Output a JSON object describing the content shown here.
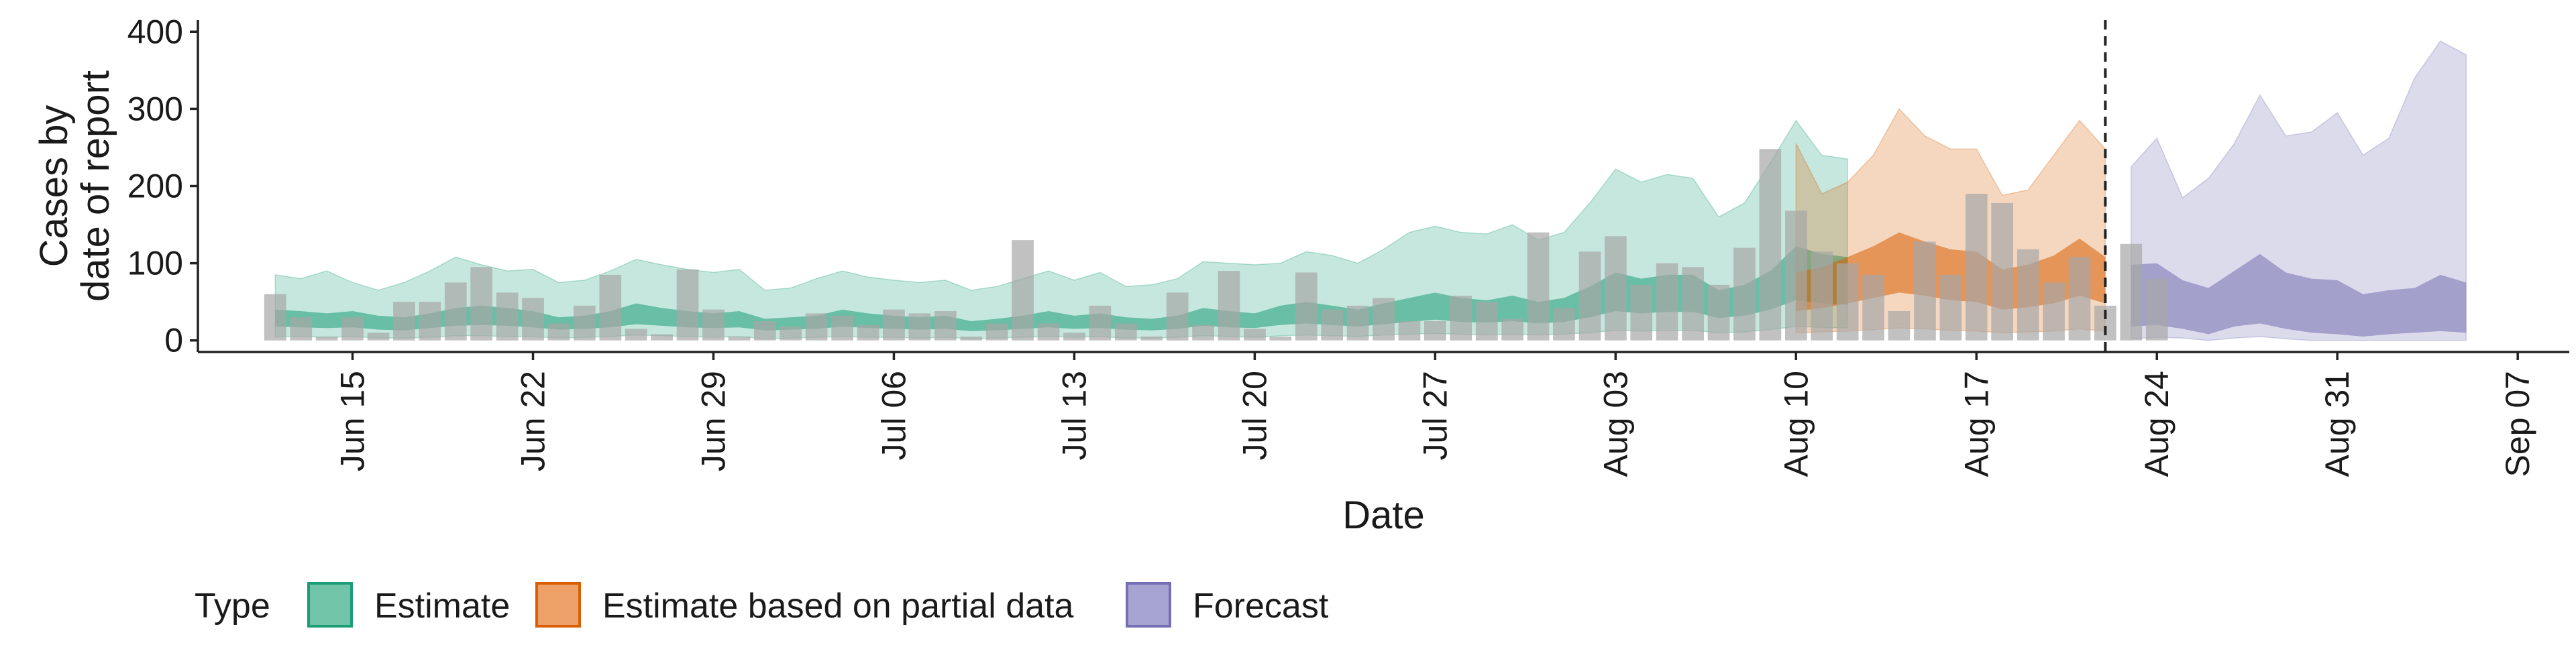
{
  "chart_data": {
    "type": "area",
    "xlabel": "Date",
    "ylabel_lines": [
      "Cases by",
      "date of report"
    ],
    "ylim": [
      -15,
      415
    ],
    "yticks": [
      0,
      100,
      200,
      300,
      400
    ],
    "xlim": [
      "2020-06-09",
      "2020-09-09"
    ],
    "xticks": [
      {
        "date": "2020-06-15",
        "label": "Jun 15"
      },
      {
        "date": "2020-06-22",
        "label": "Jun 22"
      },
      {
        "date": "2020-06-29",
        "label": "Jun 29"
      },
      {
        "date": "2020-07-06",
        "label": "Jul 06"
      },
      {
        "date": "2020-07-13",
        "label": "Jul 13"
      },
      {
        "date": "2020-07-20",
        "label": "Jul 20"
      },
      {
        "date": "2020-07-27",
        "label": "Jul 27"
      },
      {
        "date": "2020-08-03",
        "label": "Aug 03"
      },
      {
        "date": "2020-08-10",
        "label": "Aug 10"
      },
      {
        "date": "2020-08-17",
        "label": "Aug 17"
      },
      {
        "date": "2020-08-24",
        "label": "Aug 24"
      },
      {
        "date": "2020-08-31",
        "label": "Aug 31"
      },
      {
        "date": "2020-09-07",
        "label": "Sep 07"
      }
    ],
    "vline_date": "2020-08-22",
    "grid": false,
    "legend": {
      "title": "Type",
      "position": "bottom",
      "entries": [
        {
          "label": "Estimate",
          "fill": "#72c4a8",
          "stroke": "#1b9e77"
        },
        {
          "label": "Estimate based on partial data",
          "fill": "#eda067",
          "stroke": "#d95f02"
        },
        {
          "label": "Forecast",
          "fill": "#a8a4d2",
          "stroke": "#7570b3"
        }
      ]
    },
    "colors": {
      "estimate": "#1b9e77",
      "partial": "#d95f02",
      "forecast": "#7570b3",
      "bars": "#a6a6a6"
    },
    "bars": {
      "start_date": "2020-06-12",
      "values": [
        60,
        30,
        5,
        30,
        10,
        50,
        50,
        75,
        95,
        62,
        55,
        22,
        45,
        85,
        15,
        8,
        92,
        40,
        5,
        25,
        18,
        35,
        32,
        20,
        40,
        35,
        38,
        5,
        22,
        130,
        22,
        10,
        45,
        22,
        5,
        62,
        20,
        90,
        15,
        5,
        88,
        40,
        45,
        55,
        25,
        25,
        58,
        50,
        28,
        140,
        42,
        115,
        135,
        72,
        100,
        95,
        72,
        120,
        248,
        168,
        115,
        100,
        85,
        38,
        128,
        85,
        190,
        178,
        118,
        75,
        108,
        45,
        125,
        80
      ]
    },
    "series": [
      {
        "type": "Estimate",
        "start_date": "2020-06-12",
        "outer_upper": [
          85,
          80,
          90,
          75,
          65,
          75,
          90,
          108,
          98,
          90,
          92,
          75,
          78,
          90,
          105,
          98,
          92,
          88,
          92,
          65,
          68,
          80,
          90,
          82,
          78,
          75,
          78,
          65,
          70,
          80,
          90,
          78,
          88,
          70,
          72,
          80,
          102,
          100,
          98,
          100,
          115,
          110,
          100,
          118,
          140,
          148,
          140,
          138,
          150,
          130,
          140,
          178,
          222,
          205,
          215,
          210,
          160,
          178,
          230,
          285,
          240,
          235
        ],
        "inner_upper": [
          40,
          38,
          35,
          38,
          32,
          30,
          35,
          42,
          45,
          42,
          38,
          30,
          32,
          38,
          48,
          42,
          38,
          35,
          38,
          28,
          30,
          32,
          40,
          35,
          32,
          30,
          32,
          25,
          28,
          32,
          38,
          32,
          35,
          30,
          28,
          32,
          42,
          38,
          35,
          45,
          50,
          45,
          40,
          48,
          55,
          62,
          55,
          52,
          58,
          50,
          55,
          70,
          88,
          80,
          85,
          85,
          65,
          72,
          90,
          122,
          112,
          108
        ],
        "inner_lower": [
          18,
          17,
          16,
          17,
          14,
          13,
          16,
          19,
          20,
          19,
          17,
          14,
          15,
          17,
          21,
          19,
          17,
          16,
          17,
          13,
          14,
          15,
          18,
          16,
          15,
          14,
          15,
          12,
          13,
          15,
          17,
          15,
          16,
          14,
          13,
          15,
          19,
          17,
          16,
          20,
          22,
          20,
          18,
          21,
          24,
          27,
          24,
          23,
          25,
          22,
          24,
          30,
          38,
          35,
          37,
          37,
          29,
          32,
          40,
          52,
          48,
          46
        ],
        "outer_lower": [
          5,
          5,
          4,
          5,
          3,
          3,
          4,
          6,
          6,
          5,
          5,
          3,
          4,
          5,
          7,
          6,
          5,
          4,
          5,
          2,
          3,
          4,
          5,
          4,
          4,
          3,
          4,
          2,
          3,
          4,
          5,
          4,
          5,
          3,
          3,
          4,
          6,
          5,
          4,
          6,
          7,
          6,
          5,
          7,
          8,
          9,
          8,
          7,
          8,
          7,
          8,
          10,
          13,
          12,
          13,
          13,
          10,
          11,
          14,
          18,
          17,
          16
        ]
      },
      {
        "type": "Estimate based on partial data",
        "start_date": "2020-08-10",
        "outer_upper": [
          255,
          190,
          205,
          240,
          300,
          265,
          248,
          248,
          188,
          195,
          240,
          285,
          248
        ],
        "inner_upper": [
          88,
          95,
          108,
          122,
          140,
          128,
          118,
          115,
          92,
          98,
          110,
          132,
          108
        ],
        "inner_lower": [
          38,
          42,
          48,
          55,
          62,
          58,
          52,
          50,
          40,
          43,
          48,
          58,
          48
        ],
        "outer_lower": [
          10,
          11,
          12,
          14,
          16,
          15,
          13,
          12,
          10,
          11,
          12,
          15,
          12
        ]
      },
      {
        "type": "Forecast",
        "start_date": "2020-08-23",
        "outer_upper": [
          225,
          262,
          185,
          210,
          255,
          318,
          265,
          270,
          295,
          240,
          262,
          340,
          388,
          370
        ],
        "inner_upper": [
          98,
          100,
          78,
          68,
          90,
          112,
          88,
          80,
          78,
          60,
          65,
          68,
          85,
          75
        ],
        "inner_lower": [
          18,
          20,
          15,
          8,
          18,
          22,
          15,
          10,
          8,
          5,
          8,
          10,
          12,
          10
        ],
        "outer_lower": [
          2,
          4,
          3,
          0,
          3,
          5,
          2,
          0,
          0,
          0,
          0,
          0,
          0,
          0
        ]
      }
    ]
  }
}
